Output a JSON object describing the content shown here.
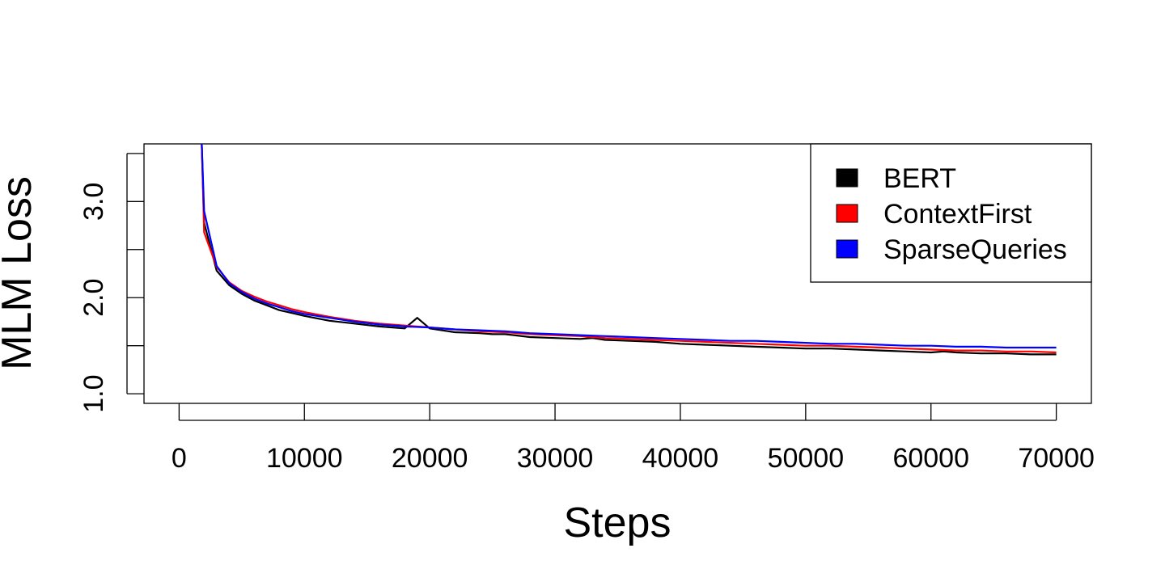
{
  "chart_data": {
    "type": "line",
    "title": "",
    "xlabel": "Steps",
    "ylabel": "MLM Loss",
    "xlim": [
      -2800,
      72800
    ],
    "ylim": [
      0.9,
      3.6
    ],
    "xticks": [
      0,
      10000,
      20000,
      30000,
      40000,
      50000,
      60000,
      70000
    ],
    "xtick_labels": [
      "0",
      "10000",
      "20000",
      "30000",
      "40000",
      "50000",
      "60000",
      "70000"
    ],
    "yticks": [
      1.0,
      1.5,
      2.0,
      2.5,
      3.0,
      3.5
    ],
    "ytick_labels": [
      "1.0",
      "",
      "2.0",
      "",
      "3.0",
      ""
    ],
    "grid": false,
    "legend_position": "top-right",
    "series": [
      {
        "name": "BERT",
        "color": "#000000",
        "x": [
          1800,
          2000,
          3000,
          4000,
          5000,
          6000,
          7000,
          8000,
          9000,
          10000,
          12000,
          14000,
          16000,
          18000,
          19000,
          20000,
          22000,
          24000,
          25000,
          26000,
          28000,
          30000,
          32000,
          33000,
          34000,
          36000,
          38000,
          40000,
          42000,
          44000,
          46000,
          48000,
          50000,
          52000,
          54000,
          56000,
          58000,
          60000,
          61000,
          62000,
          64000,
          66000,
          68000,
          70000
        ],
        "y": [
          3.62,
          2.78,
          2.28,
          2.13,
          2.04,
          1.97,
          1.92,
          1.87,
          1.84,
          1.81,
          1.76,
          1.73,
          1.7,
          1.68,
          1.79,
          1.68,
          1.64,
          1.63,
          1.62,
          1.62,
          1.59,
          1.58,
          1.57,
          1.58,
          1.56,
          1.55,
          1.54,
          1.52,
          1.51,
          1.5,
          1.49,
          1.48,
          1.47,
          1.47,
          1.46,
          1.45,
          1.44,
          1.43,
          1.44,
          1.43,
          1.42,
          1.42,
          1.41,
          1.41
        ]
      },
      {
        "name": "ContextFirst",
        "color": "#ff0000",
        "x": [
          1800,
          2000,
          3000,
          4000,
          5000,
          6000,
          7000,
          8000,
          9000,
          10000,
          12000,
          14000,
          16000,
          18000,
          20000,
          22000,
          24000,
          26000,
          28000,
          30000,
          32000,
          34000,
          36000,
          38000,
          40000,
          42000,
          44000,
          46000,
          48000,
          50000,
          52000,
          54000,
          56000,
          58000,
          60000,
          62000,
          64000,
          66000,
          68000,
          70000
        ],
        "y": [
          3.62,
          2.68,
          2.32,
          2.16,
          2.07,
          2.01,
          1.96,
          1.92,
          1.88,
          1.85,
          1.8,
          1.76,
          1.73,
          1.71,
          1.69,
          1.67,
          1.65,
          1.64,
          1.62,
          1.61,
          1.6,
          1.58,
          1.57,
          1.56,
          1.55,
          1.54,
          1.53,
          1.52,
          1.51,
          1.5,
          1.5,
          1.49,
          1.48,
          1.47,
          1.46,
          1.45,
          1.45,
          1.44,
          1.44,
          1.43
        ]
      },
      {
        "name": "SparseQueries",
        "color": "#0000ff",
        "x": [
          1800,
          2000,
          3000,
          4000,
          5000,
          6000,
          7000,
          8000,
          9000,
          10000,
          12000,
          14000,
          16000,
          18000,
          20000,
          22000,
          24000,
          26000,
          28000,
          30000,
          32000,
          34000,
          36000,
          38000,
          40000,
          42000,
          44000,
          46000,
          48000,
          50000,
          52000,
          54000,
          56000,
          58000,
          60000,
          62000,
          64000,
          66000,
          68000,
          70000
        ],
        "y": [
          3.62,
          2.9,
          2.33,
          2.15,
          2.06,
          1.99,
          1.94,
          1.9,
          1.86,
          1.83,
          1.79,
          1.75,
          1.72,
          1.7,
          1.69,
          1.67,
          1.66,
          1.65,
          1.63,
          1.62,
          1.61,
          1.6,
          1.59,
          1.58,
          1.57,
          1.56,
          1.55,
          1.55,
          1.54,
          1.53,
          1.52,
          1.52,
          1.51,
          1.5,
          1.5,
          1.49,
          1.49,
          1.48,
          1.48,
          1.48
        ]
      }
    ]
  }
}
